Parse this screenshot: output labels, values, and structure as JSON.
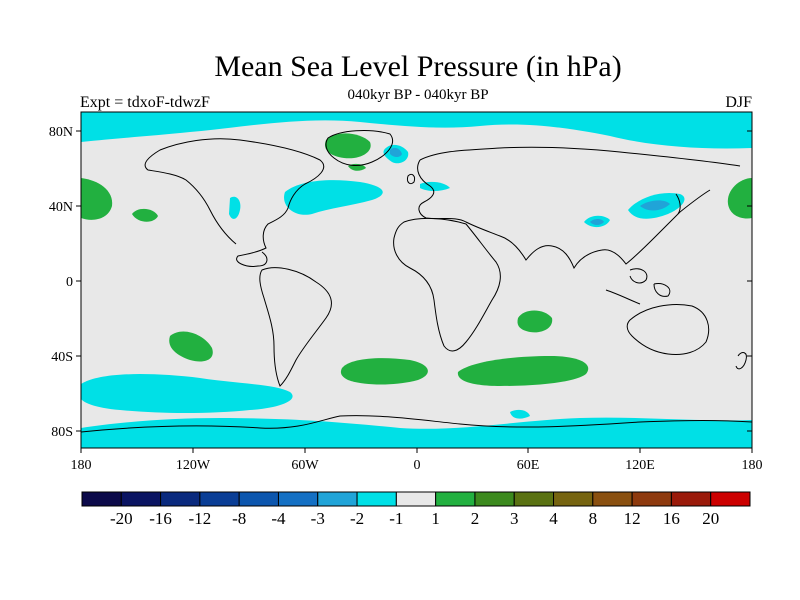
{
  "title": "Mean Sea Level Pressure (in hPa)",
  "subtitle": "040kyr BP - 040kyr BP",
  "left_label": "Expt = tdxoF-tdwzF",
  "right_label": "DJF",
  "lat_ticks": [
    "80N",
    "40N",
    "0",
    "40S",
    "80S"
  ],
  "lon_ticks": [
    "180",
    "120W",
    "60W",
    "0",
    "60E",
    "120E",
    "180"
  ],
  "colorbar": {
    "colors": [
      "#0c0a4a",
      "#0a1462",
      "#0a2a7e",
      "#0a3e96",
      "#0c56ae",
      "#1470c4",
      "#20a4d8",
      "#00e0e6",
      "#e8e8e8",
      "#22b040",
      "#3c8a1e",
      "#5a7212",
      "#766410",
      "#8a5010",
      "#8e3a0e",
      "#9a1a0a",
      "#cc0000"
    ],
    "labels": [
      "-20",
      "-16",
      "-12",
      "-8",
      "-4",
      "-3",
      "-2",
      "-1",
      "1",
      "2",
      "3",
      "4",
      "8",
      "12",
      "16",
      "20"
    ]
  },
  "fill_colors": {
    "land_bg": "#e8e8e8",
    "neg1": "#00e0e6",
    "neg2": "#20a4d8",
    "pos1": "#22b040"
  }
}
